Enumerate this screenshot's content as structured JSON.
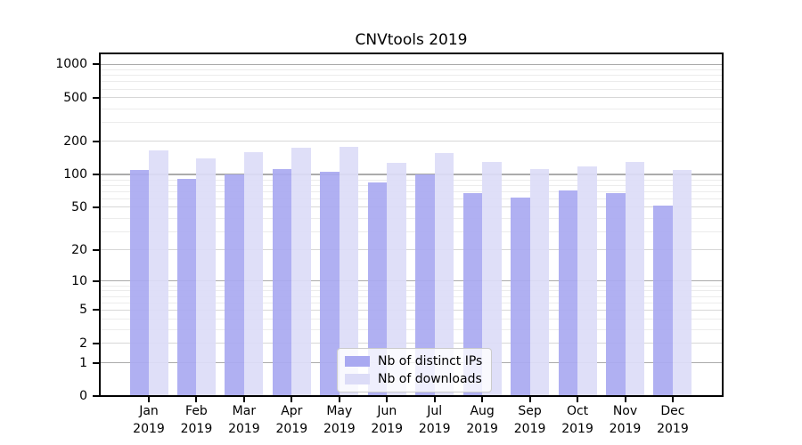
{
  "title": "CNVtools 2019",
  "chart_data": {
    "type": "bar",
    "title": "CNVtools 2019",
    "categories": [
      "Jan",
      "Feb",
      "Mar",
      "Apr",
      "May",
      "Jun",
      "Jul",
      "Aug",
      "Sep",
      "Oct",
      "Nov",
      "Dec"
    ],
    "year_label": "2019",
    "series": [
      {
        "name": "Nb of distinct IPs",
        "color": "#a9a9f1",
        "values": [
          110,
          91,
          100,
          111,
          105,
          85,
          100,
          68,
          61,
          72,
          67,
          52
        ]
      },
      {
        "name": "Nb of downloads",
        "color": "#dcdcf7",
        "values": [
          165,
          141,
          160,
          176,
          177,
          128,
          157,
          130,
          112,
          119,
          130,
          110
        ]
      }
    ],
    "xlabel": "",
    "ylabel": "",
    "yscale": "log1p",
    "yticks": [
      0,
      1,
      2,
      5,
      10,
      20,
      50,
      100,
      200,
      500,
      1000
    ],
    "ylim": [
      0,
      1256
    ],
    "grid": true,
    "legend_position": "lower center",
    "colors": {
      "grid_major": "#ababab",
      "grid_mid": "#d7d7d7",
      "grid_minor": "#ececec",
      "axis": "#000000",
      "legend_border": "#cccccc"
    }
  }
}
